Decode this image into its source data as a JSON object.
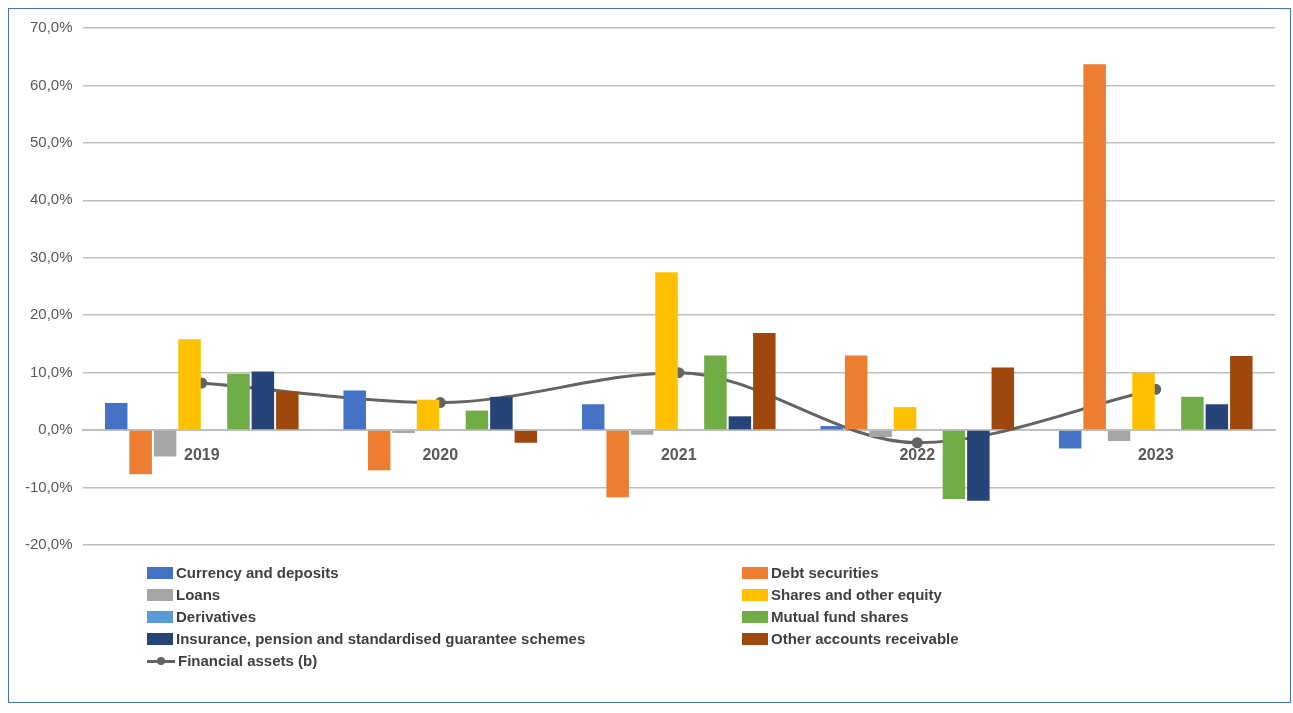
{
  "chart_data": {
    "type": "bar",
    "categories": [
      "2019",
      "2020",
      "2021",
      "2022",
      "2023"
    ],
    "series": [
      {
        "name": "Currency and deposits",
        "color": "#4472c4",
        "values": [
          4.7,
          6.9,
          4.5,
          0.7,
          -3.2
        ]
      },
      {
        "name": "Debt securities",
        "color": "#ed7d31",
        "values": [
          -7.7,
          -7.0,
          -11.7,
          13.0,
          63.7
        ]
      },
      {
        "name": "Loans",
        "color": "#a5a5a5",
        "values": [
          -4.6,
          -0.5,
          -0.8,
          -1.2,
          -1.9
        ]
      },
      {
        "name": "Shares and other equity",
        "color": "#ffc000",
        "values": [
          15.8,
          5.3,
          27.5,
          4.0,
          10.0
        ]
      },
      {
        "name": "Derivatives",
        "color": "#5b9bd5",
        "values": [
          null,
          null,
          null,
          null,
          null
        ]
      },
      {
        "name": "Mutual fund shares",
        "color": "#70ad47",
        "values": [
          9.8,
          3.4,
          13.0,
          -12.0,
          5.8
        ]
      },
      {
        "name": "Insurance, pension and standardised guarantee schemes",
        "color": "#264478",
        "values": [
          10.2,
          5.8,
          2.4,
          -12.3,
          4.5
        ]
      },
      {
        "name": "Other accounts receivable",
        "color": "#9e480e",
        "values": [
          6.7,
          -2.2,
          16.9,
          10.9,
          12.9
        ]
      },
      {
        "name": "Financial assets (b)",
        "type": "line",
        "color": "#636363",
        "values": [
          8.2,
          4.8,
          10.0,
          -2.2,
          7.1
        ]
      }
    ],
    "ylim": [
      -20,
      70
    ],
    "yticks": [
      {
        "value": -20,
        "label": "-20,0%"
      },
      {
        "value": -10,
        "label": "-10,0%"
      },
      {
        "value": 0,
        "label": "0,0%"
      },
      {
        "value": 10,
        "label": "10,0%"
      },
      {
        "value": 20,
        "label": "20,0%"
      },
      {
        "value": 30,
        "label": "30,0%"
      },
      {
        "value": 40,
        "label": "40,0%"
      },
      {
        "value": 50,
        "label": "50,0%"
      },
      {
        "value": 60,
        "label": "60,0%"
      },
      {
        "value": 70,
        "label": "70,0%"
      }
    ],
    "grid": "y",
    "legend": "bottom",
    "marker": "circle"
  }
}
